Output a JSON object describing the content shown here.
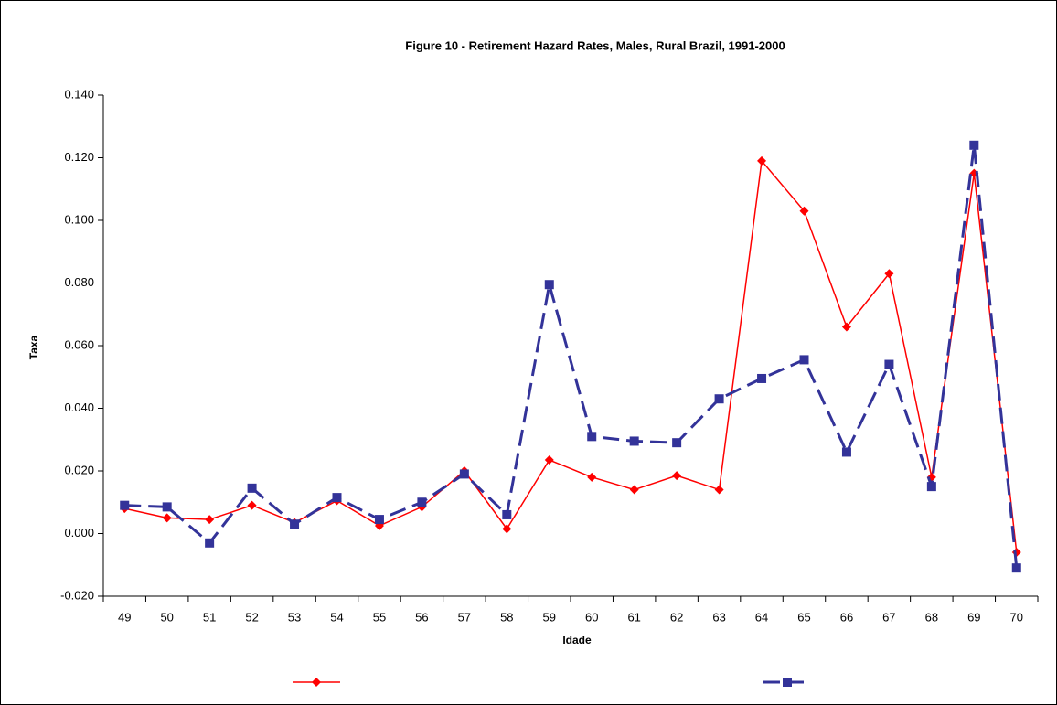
{
  "chart_data": {
    "type": "line",
    "title": "Figure 10 - Retirement Hazard Rates, Males, Rural Brazil, 1991-2000",
    "x_label": "Idade",
    "y_label": "Taxa",
    "categories": [
      "49",
      "50",
      "51",
      "52",
      "53",
      "54",
      "55",
      "56",
      "57",
      "58",
      "59",
      "60",
      "61",
      "62",
      "63",
      "64",
      "65",
      "66",
      "67",
      "68",
      "69",
      "70"
    ],
    "series": [
      {
        "color": "#ff0000",
        "marker": "diamond",
        "dash": "solid",
        "values": [
          0.008,
          0.005,
          0.0045,
          0.009,
          0.0035,
          0.0105,
          0.0025,
          0.0085,
          0.02,
          0.0015,
          0.0235,
          0.018,
          0.014,
          0.0185,
          0.014,
          0.119,
          0.103,
          0.066,
          0.083,
          0.018,
          0.115,
          -0.006
        ]
      },
      {
        "color": "#333399",
        "marker": "square",
        "dash": "dashed",
        "values": [
          0.009,
          0.0085,
          -0.003,
          0.0145,
          0.003,
          0.0115,
          0.0045,
          0.01,
          0.019,
          0.006,
          0.0795,
          0.031,
          0.0295,
          0.029,
          0.043,
          0.0495,
          0.0555,
          0.026,
          0.054,
          0.015,
          0.124,
          -0.011
        ]
      }
    ],
    "ylim": [
      -0.02,
      0.14
    ],
    "yticks": [
      {
        "value": -0.02,
        "label": "-0.020"
      },
      {
        "value": 0,
        "label": "0.000"
      },
      {
        "value": 0.02,
        "label": "0.020"
      },
      {
        "value": 0.04,
        "label": "0.040"
      },
      {
        "value": 0.06,
        "label": "0.060"
      },
      {
        "value": 0.08,
        "label": "0.080"
      },
      {
        "value": 0.1,
        "label": "0.100"
      },
      {
        "value": 0.12,
        "label": "0.120"
      },
      {
        "value": 0.14,
        "label": "0.140"
      }
    ],
    "grid": false
  }
}
